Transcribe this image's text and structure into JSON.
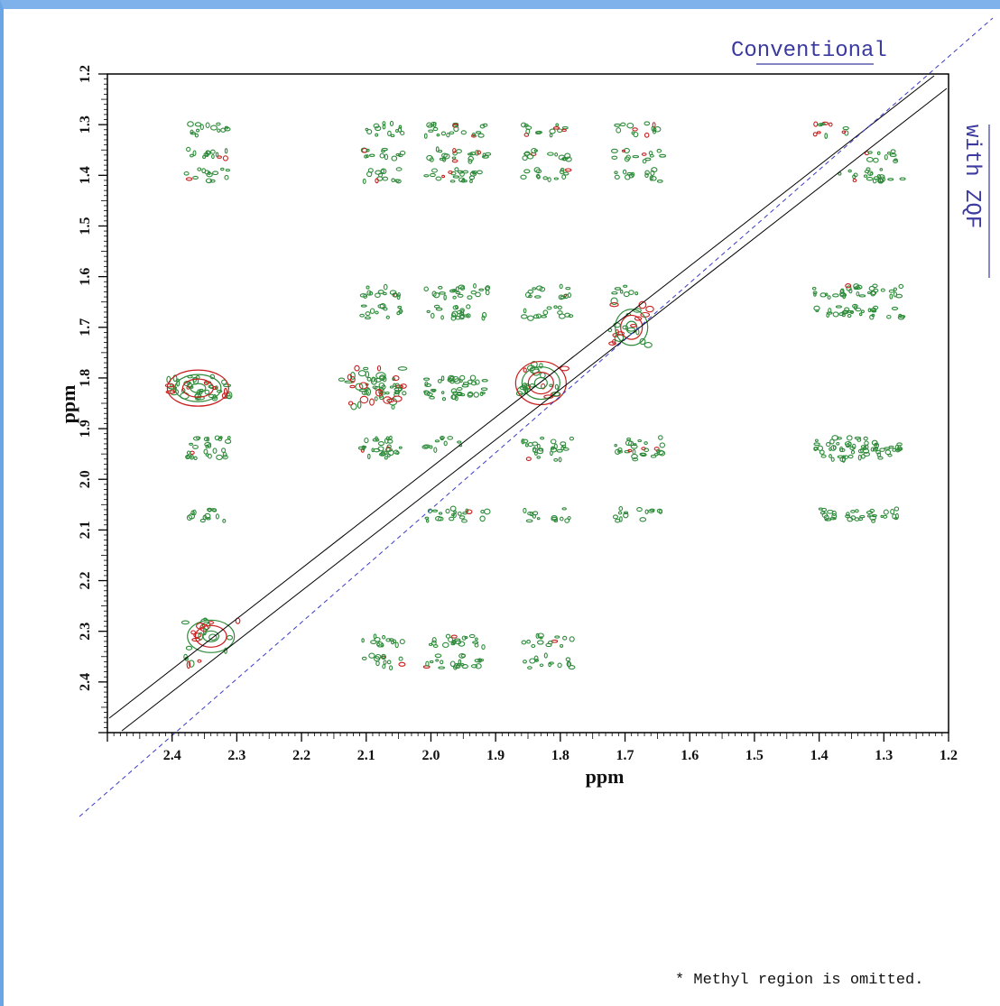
{
  "labels": {
    "conventional": "Conventional",
    "with_zqf": "with ZQF",
    "footnote": "* Methyl region is omitted."
  },
  "colors": {
    "positive_contour": "#2e8b3a",
    "negative_contour": "#c81e1e",
    "frame": "#7fb2ea",
    "label_text": "#3a3aa0",
    "diagonal_dashed": "#3a3ac8"
  },
  "chart_data": {
    "type": "heatmap",
    "subtype": "2D NMR contour plot",
    "xlabel": "ppm",
    "ylabel": "ppm",
    "xlim": [
      2.5,
      1.2
    ],
    "ylim": [
      1.2,
      2.5
    ],
    "x_reversed": true,
    "y_reversed": true,
    "x_ticks": [
      "2.4",
      "2.3",
      "2.2",
      "2.1",
      "2.0",
      "1.9",
      "1.8",
      "1.7",
      "1.6",
      "1.5",
      "1.4",
      "1.3",
      "1.2"
    ],
    "y_ticks": [
      "1.2",
      "1.3",
      "1.4",
      "1.5",
      "1.6",
      "1.7",
      "1.8",
      "1.9",
      "2.0",
      "2.1",
      "2.2",
      "2.3",
      "2.4"
    ],
    "peak_columns_ppm": [
      2.36,
      2.33,
      2.09,
      2.06,
      1.98,
      1.94,
      1.84,
      1.8,
      1.7,
      1.66,
      1.38,
      1.34,
      1.3
    ],
    "peak_rows_ppm": [
      1.31,
      1.36,
      1.4,
      1.63,
      1.67,
      1.81,
      1.83,
      1.93,
      1.95,
      2.07,
      2.32,
      2.36
    ],
    "diagonal_peaks": [
      {
        "x": 2.34,
        "y": 2.32
      },
      {
        "x": 1.83,
        "y": 1.82
      },
      {
        "x": 1.69,
        "y": 1.69
      }
    ],
    "strong_peaks": [
      {
        "x": 2.36,
        "y": 1.82
      },
      {
        "x": 2.09,
        "y": 1.8
      },
      {
        "x": 2.09,
        "y": 1.84
      }
    ]
  }
}
